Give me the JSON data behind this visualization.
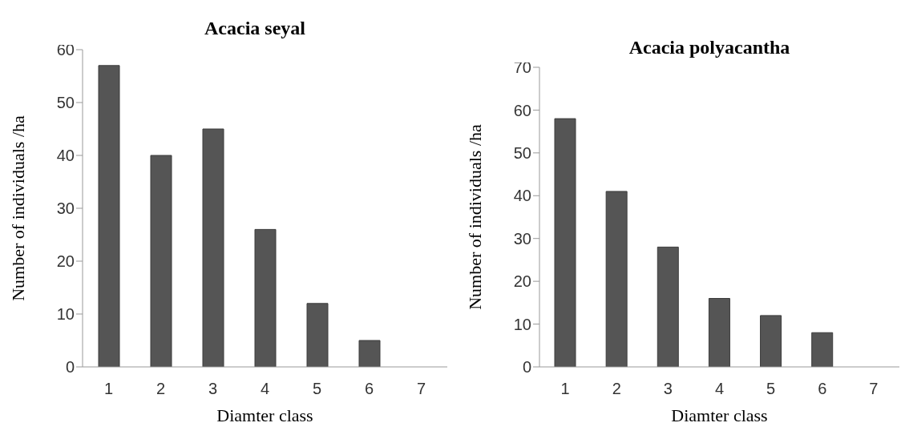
{
  "chart_data": [
    {
      "type": "bar",
      "title": "Acacia seyal",
      "xlabel": "Diamter class",
      "ylabel": "Number of individuals /ha",
      "categories": [
        "1",
        "2",
        "3",
        "4",
        "5",
        "6",
        "7"
      ],
      "values": [
        57,
        40,
        45,
        26,
        12,
        5,
        0
      ],
      "color": "#555555",
      "ylim": [
        0,
        60
      ],
      "yticks": [
        0,
        10,
        20,
        30,
        40,
        50,
        60
      ],
      "grid": false,
      "legend": false
    },
    {
      "type": "bar",
      "title": "Acacia polyacantha",
      "xlabel": "Diamter class",
      "ylabel": "Number of individuals /ha",
      "categories": [
        "1",
        "2",
        "3",
        "4",
        "5",
        "6",
        "7"
      ],
      "values": [
        58,
        41,
        28,
        16,
        12,
        8,
        0
      ],
      "color": "#555555",
      "ylim": [
        0,
        70
      ],
      "yticks": [
        0,
        10,
        20,
        30,
        40,
        50,
        60,
        70
      ],
      "grid": false,
      "legend": false
    }
  ]
}
